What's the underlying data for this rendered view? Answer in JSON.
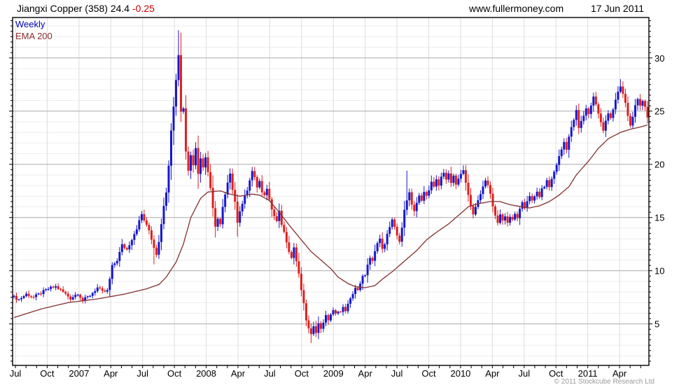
{
  "header": {
    "title_main": "Jiangxi Copper (358) 24.4 ",
    "title_change": "-0.25",
    "site": "www.fullermoney.com",
    "date": "17 Jun 2011"
  },
  "legend": {
    "timeframe": "Weekly",
    "overlay": "EMA 200"
  },
  "footer": {
    "copyright": "© 2011 Stockcube Research Ltd"
  },
  "chart_data": {
    "type": "candlestick",
    "title": "Jiangxi Copper (358) weekly candlestick chart with 200-day EMA",
    "last_close": 24.4,
    "change": -0.25,
    "x_tick_labels": [
      "Jul",
      "Oct",
      "2007",
      "Apr",
      "Jul",
      "Oct",
      "2008",
      "Apr",
      "Jul",
      "Oct",
      "2009",
      "Apr",
      "Jul",
      "Oct",
      "2010",
      "Apr",
      "Jul",
      "Oct",
      "2011",
      "Apr"
    ],
    "y_tick_values": [
      5,
      10,
      15,
      20,
      25,
      30
    ],
    "ylim": [
      1.1,
      33.8
    ],
    "weeks": 259,
    "grid": true,
    "legend_position": "top-left",
    "close_anchors": [
      [
        0,
        7.5
      ],
      [
        2,
        7.3
      ],
      [
        5,
        7.8
      ],
      [
        8,
        7.5
      ],
      [
        11,
        7.9
      ],
      [
        14,
        8.3
      ],
      [
        17,
        8.5
      ],
      [
        20,
        8.0
      ],
      [
        23,
        7.4
      ],
      [
        26,
        7.9
      ],
      [
        28,
        7.2
      ],
      [
        31,
        7.7
      ],
      [
        34,
        8.4
      ],
      [
        36,
        8.0
      ],
      [
        38,
        8.1
      ],
      [
        39,
        9.2
      ],
      [
        40,
        10.4
      ],
      [
        42,
        11.0
      ],
      [
        44,
        12.4
      ],
      [
        46,
        12.0
      ],
      [
        48,
        13.0
      ],
      [
        50,
        14.0
      ],
      [
        52,
        15.3
      ],
      [
        54,
        14.2
      ],
      [
        55,
        13.8
      ],
      [
        57,
        12.2
      ],
      [
        58,
        11.6
      ],
      [
        59,
        12.8
      ],
      [
        60,
        14.5
      ],
      [
        61,
        16.0
      ],
      [
        62,
        17.5
      ],
      [
        63,
        20.0
      ],
      [
        64,
        23.3
      ],
      [
        65,
        25.4
      ],
      [
        66,
        28.0
      ],
      [
        67,
        30.3
      ],
      [
        68,
        25.0
      ],
      [
        69,
        25.3
      ],
      [
        70,
        21.2
      ],
      [
        71,
        19.5
      ],
      [
        72,
        21.0
      ],
      [
        73,
        20.0
      ],
      [
        74,
        21.5
      ],
      [
        75,
        19.2
      ],
      [
        76,
        20.5
      ],
      [
        77,
        19.8
      ],
      [
        78,
        20.8
      ],
      [
        79,
        19.2
      ],
      [
        80,
        17.8
      ],
      [
        81,
        16.0
      ],
      [
        82,
        14.2
      ],
      [
        83,
        15.0
      ],
      [
        84,
        14.4
      ],
      [
        85,
        16.0
      ],
      [
        86,
        17.2
      ],
      [
        87,
        18.3
      ],
      [
        88,
        19.0
      ],
      [
        89,
        17.5
      ],
      [
        90,
        16.6
      ],
      [
        91,
        14.5
      ],
      [
        92,
        15.5
      ],
      [
        93,
        16.2
      ],
      [
        94,
        17.0
      ],
      [
        95,
        17.4
      ],
      [
        96,
        18.6
      ],
      [
        97,
        19.5
      ],
      [
        98,
        18.8
      ],
      [
        99,
        17.9
      ],
      [
        100,
        18.3
      ],
      [
        101,
        17.5
      ],
      [
        102,
        17.2
      ],
      [
        103,
        17.7
      ],
      [
        104,
        16.6
      ],
      [
        105,
        15.8
      ],
      [
        106,
        15.1
      ],
      [
        107,
        14.6
      ],
      [
        108,
        15.5
      ],
      [
        109,
        14.4
      ],
      [
        110,
        13.6
      ],
      [
        111,
        12.8
      ],
      [
        112,
        11.9
      ],
      [
        113,
        11.2
      ],
      [
        114,
        12.2
      ],
      [
        115,
        10.9
      ],
      [
        116,
        9.6
      ],
      [
        117,
        8.2
      ],
      [
        118,
        6.8
      ],
      [
        119,
        5.4
      ],
      [
        120,
        4.5
      ],
      [
        121,
        3.9
      ],
      [
        122,
        4.9
      ],
      [
        123,
        4.3
      ],
      [
        124,
        5.0
      ],
      [
        125,
        4.6
      ],
      [
        126,
        5.2
      ],
      [
        127,
        5.7
      ],
      [
        128,
        5.4
      ],
      [
        129,
        5.9
      ],
      [
        130,
        6.2
      ],
      [
        131,
        5.9
      ],
      [
        132,
        6.3
      ],
      [
        133,
        6.1
      ],
      [
        134,
        6.5
      ],
      [
        135,
        6.3
      ],
      [
        136,
        6.8
      ],
      [
        137,
        7.3
      ],
      [
        138,
        7.9
      ],
      [
        139,
        8.4
      ],
      [
        140,
        8.1
      ],
      [
        141,
        8.7
      ],
      [
        142,
        9.4
      ],
      [
        143,
        9.7
      ],
      [
        144,
        10.5
      ],
      [
        145,
        11.1
      ],
      [
        146,
        10.8
      ],
      [
        147,
        11.8
      ],
      [
        148,
        12.6
      ],
      [
        149,
        12.9
      ],
      [
        150,
        12.2
      ],
      [
        151,
        12.6
      ],
      [
        152,
        13.4
      ],
      [
        153,
        14.1
      ],
      [
        154,
        14.7
      ],
      [
        155,
        14.0
      ],
      [
        156,
        13.3
      ],
      [
        157,
        12.8
      ],
      [
        158,
        14.1
      ],
      [
        159,
        15.6
      ],
      [
        160,
        16.6
      ],
      [
        161,
        17.5
      ],
      [
        162,
        16.2
      ],
      [
        163,
        15.7
      ],
      [
        164,
        16.4
      ],
      [
        165,
        17.0
      ],
      [
        166,
        16.5
      ],
      [
        167,
        17.4
      ],
      [
        168,
        17.0
      ],
      [
        169,
        17.7
      ],
      [
        170,
        18.3
      ],
      [
        171,
        17.8
      ],
      [
        172,
        18.5
      ],
      [
        173,
        18.0
      ],
      [
        174,
        18.8
      ],
      [
        175,
        19.3
      ],
      [
        176,
        18.6
      ],
      [
        177,
        19.0
      ],
      [
        178,
        18.3
      ],
      [
        179,
        18.8
      ],
      [
        180,
        18.1
      ],
      [
        181,
        18.6
      ],
      [
        182,
        19.0
      ],
      [
        183,
        19.6
      ],
      [
        184,
        18.4
      ],
      [
        185,
        17.0
      ],
      [
        186,
        16.0
      ],
      [
        187,
        15.3
      ],
      [
        188,
        16.1
      ],
      [
        189,
        16.6
      ],
      [
        190,
        17.3
      ],
      [
        191,
        17.9
      ],
      [
        192,
        18.6
      ],
      [
        193,
        17.9
      ],
      [
        194,
        17.2
      ],
      [
        195,
        16.1
      ],
      [
        196,
        15.1
      ],
      [
        197,
        14.6
      ],
      [
        198,
        15.3
      ],
      [
        199,
        14.7
      ],
      [
        200,
        15.2
      ],
      [
        201,
        14.5
      ],
      [
        202,
        15.1
      ],
      [
        203,
        14.7
      ],
      [
        204,
        15.3
      ],
      [
        205,
        15.0
      ],
      [
        206,
        15.7
      ],
      [
        207,
        16.3
      ],
      [
        208,
        15.9
      ],
      [
        209,
        16.6
      ],
      [
        210,
        17.1
      ],
      [
        211,
        16.5
      ],
      [
        212,
        16.9
      ],
      [
        213,
        17.4
      ],
      [
        214,
        17.0
      ],
      [
        215,
        17.6
      ],
      [
        216,
        18.0
      ],
      [
        217,
        18.4
      ],
      [
        218,
        17.9
      ],
      [
        219,
        18.6
      ],
      [
        220,
        19.3
      ],
      [
        221,
        20.0
      ],
      [
        222,
        20.7
      ],
      [
        223,
        21.4
      ],
      [
        224,
        22.1
      ],
      [
        225,
        21.5
      ],
      [
        226,
        22.6
      ],
      [
        227,
        23.4
      ],
      [
        228,
        24.2
      ],
      [
        229,
        25.0
      ],
      [
        230,
        23.4
      ],
      [
        231,
        24.0
      ],
      [
        232,
        24.6
      ],
      [
        233,
        25.3
      ],
      [
        234,
        24.7
      ],
      [
        235,
        25.6
      ],
      [
        236,
        26.4
      ],
      [
        237,
        25.6
      ],
      [
        238,
        24.8
      ],
      [
        239,
        23.9
      ],
      [
        240,
        23.1
      ],
      [
        241,
        24.1
      ],
      [
        242,
        24.9
      ],
      [
        243,
        24.4
      ],
      [
        244,
        25.2
      ],
      [
        245,
        26.0
      ],
      [
        246,
        26.7
      ],
      [
        247,
        27.3
      ],
      [
        248,
        26.6
      ],
      [
        249,
        25.7
      ],
      [
        250,
        24.6
      ],
      [
        251,
        23.6
      ],
      [
        252,
        24.6
      ],
      [
        253,
        25.4
      ],
      [
        254,
        26.0
      ],
      [
        255,
        25.4
      ],
      [
        256,
        26.0
      ],
      [
        257,
        25.5
      ],
      [
        258,
        24.4
      ]
    ],
    "ema_anchors": [
      [
        0,
        5.6
      ],
      [
        11,
        6.4
      ],
      [
        22,
        7.0
      ],
      [
        34,
        7.35
      ],
      [
        45,
        7.8
      ],
      [
        54,
        8.3
      ],
      [
        59,
        8.7
      ],
      [
        62,
        9.4
      ],
      [
        66,
        10.8
      ],
      [
        69,
        12.5
      ],
      [
        72,
        15.0
      ],
      [
        76,
        16.8
      ],
      [
        79,
        17.4
      ],
      [
        84,
        17.5
      ],
      [
        88,
        17.2
      ],
      [
        92,
        17.0
      ],
      [
        97,
        17.2
      ],
      [
        100,
        17.1
      ],
      [
        104,
        16.6
      ],
      [
        108,
        15.5
      ],
      [
        112,
        14.3
      ],
      [
        117,
        12.9
      ],
      [
        121,
        11.8
      ],
      [
        125,
        11.0
      ],
      [
        129,
        10.2
      ],
      [
        132,
        9.4
      ],
      [
        136,
        8.8
      ],
      [
        139,
        8.5
      ],
      [
        143,
        8.4
      ],
      [
        147,
        8.6
      ],
      [
        150,
        9.2
      ],
      [
        154,
        9.9
      ],
      [
        159,
        10.9
      ],
      [
        164,
        11.9
      ],
      [
        168,
        12.9
      ],
      [
        172,
        13.6
      ],
      [
        177,
        14.4
      ],
      [
        181,
        15.2
      ],
      [
        185,
        16.0
      ],
      [
        189,
        16.3
      ],
      [
        194,
        16.5
      ],
      [
        198,
        16.5
      ],
      [
        202,
        16.2
      ],
      [
        207,
        16.0
      ],
      [
        210,
        15.9
      ],
      [
        214,
        16.1
      ],
      [
        218,
        16.5
      ],
      [
        222,
        17.1
      ],
      [
        226,
        17.9
      ],
      [
        229,
        19.0
      ],
      [
        234,
        20.3
      ],
      [
        238,
        21.5
      ],
      [
        242,
        22.4
      ],
      [
        247,
        23.0
      ],
      [
        251,
        23.3
      ],
      [
        255,
        23.5
      ],
      [
        258,
        23.7
      ]
    ],
    "wick_spikes": [
      {
        "week": 57,
        "low": 10.6
      },
      {
        "week": 67,
        "high": 32.6
      },
      {
        "week": 82,
        "low": 13.2
      },
      {
        "week": 91,
        "low": 13.2
      },
      {
        "week": 121,
        "low": 3.2
      },
      {
        "week": 160,
        "high": 19.4
      },
      {
        "week": 183,
        "high": 19.9
      },
      {
        "week": 247,
        "high": 28.0
      }
    ],
    "colors": {
      "up_candle": "#1717cd",
      "down_candle": "#e01f1f",
      "ema_line": "#843030",
      "change_text": "#cc0000",
      "timeframe_text": "#0000bb",
      "grid_minor": "#ededed",
      "grid_vertical": "#dcdcdc",
      "grid_major": "#aaaaaa",
      "copyright_text": "#9a9a9a"
    }
  }
}
